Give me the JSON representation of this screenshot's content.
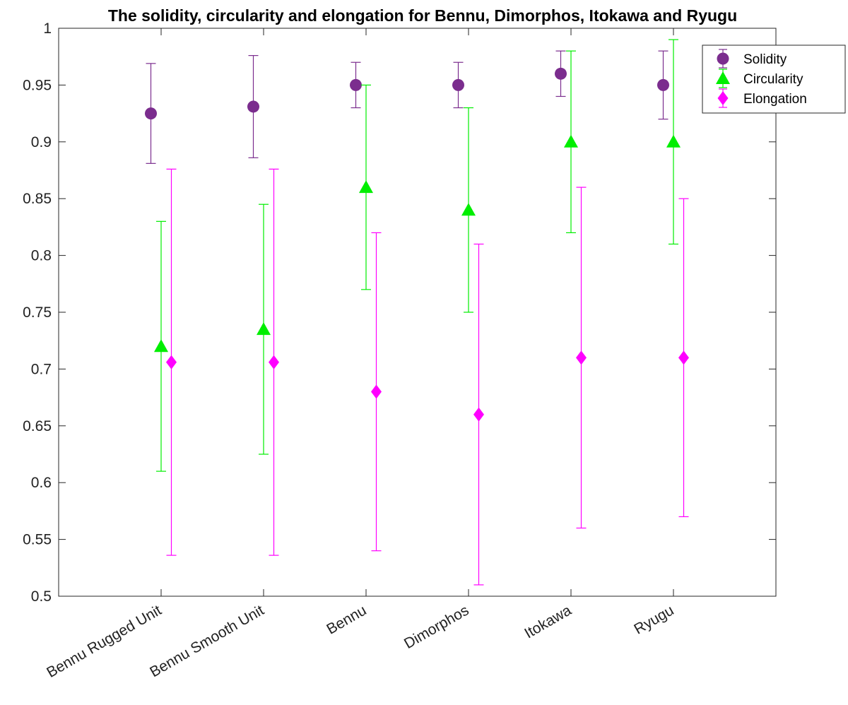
{
  "chart_data": {
    "type": "scatter",
    "title": "The solidity, circularity and elongation for Bennu, Dimorphos, Itokawa and Ryugu",
    "xlabel": "",
    "ylabel": "",
    "categories": [
      "Bennu Rugged Unit",
      "Bennu Smooth Unit",
      "Bennu",
      "Dimorphos",
      "Itokawa",
      "Ryugu"
    ],
    "ylim": [
      0.5,
      1
    ],
    "yticks": [
      "0.5",
      "0.55",
      "0.6",
      "0.65",
      "0.7",
      "0.75",
      "0.8",
      "0.85",
      "0.9",
      "0.95",
      "1"
    ],
    "legend_position": "top-right",
    "grid": false,
    "series": [
      {
        "name": "Solidity",
        "marker": "circle",
        "color": "#7B2D8E",
        "values": [
          0.925,
          0.931,
          0.95,
          0.95,
          0.96,
          0.95
        ],
        "lower": [
          0.881,
          0.886,
          0.93,
          0.93,
          0.94,
          0.92
        ],
        "upper": [
          0.969,
          0.976,
          0.97,
          0.97,
          0.98,
          0.98
        ]
      },
      {
        "name": "Circularity",
        "marker": "triangle",
        "color": "#00EE00",
        "values": [
          0.72,
          0.735,
          0.86,
          0.84,
          0.9,
          0.9
        ],
        "lower": [
          0.61,
          0.625,
          0.77,
          0.75,
          0.82,
          0.81
        ],
        "upper": [
          0.83,
          0.845,
          0.95,
          0.93,
          0.98,
          0.99
        ]
      },
      {
        "name": "Elongation",
        "marker": "diamond",
        "color": "#FF00FF",
        "values": [
          0.706,
          0.706,
          0.68,
          0.66,
          0.71,
          0.71
        ],
        "lower": [
          0.536,
          0.536,
          0.54,
          0.51,
          0.56,
          0.57
        ],
        "upper": [
          0.876,
          0.876,
          0.82,
          0.81,
          0.86,
          0.85
        ]
      }
    ]
  }
}
